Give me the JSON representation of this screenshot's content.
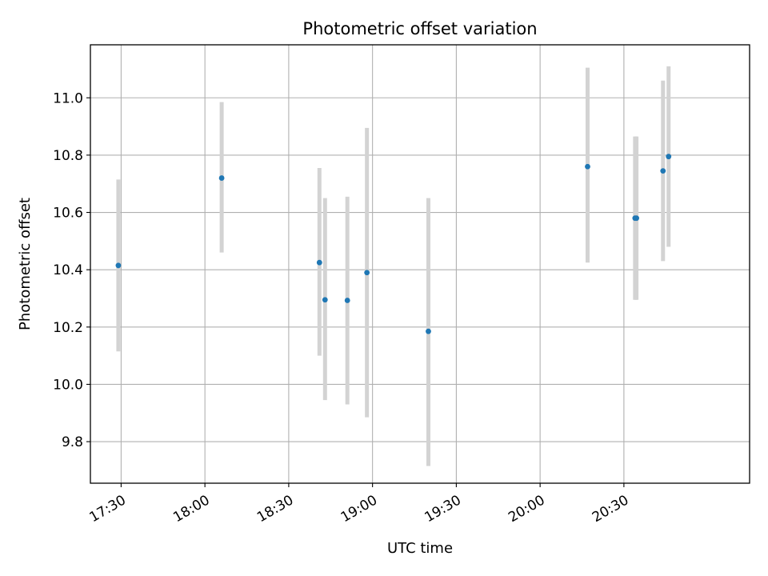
{
  "chart_data": {
    "type": "scatter",
    "title": "Photometric offset variation",
    "xlabel": "UTC time",
    "ylabel": "Photometric offset",
    "xlim": [
      "17:19",
      "21:15"
    ],
    "ylim": [
      9.655,
      11.185
    ],
    "x_ticks": [
      "17:30",
      "18:00",
      "18:30",
      "19:00",
      "19:30",
      "20:00",
      "20:30"
    ],
    "y_ticks": [
      "9.8",
      "10.0",
      "10.2",
      "10.4",
      "10.6",
      "10.8",
      "11.0"
    ],
    "grid": true,
    "marker_color": "#1f77b4",
    "errorbar_color": "#d3d3d3",
    "points": [
      {
        "time": "17:29",
        "value": 10.415,
        "low": 10.115,
        "high": 10.715
      },
      {
        "time": "18:06",
        "value": 10.72,
        "low": 10.46,
        "high": 10.985
      },
      {
        "time": "18:41",
        "value": 10.425,
        "low": 10.1,
        "high": 10.755
      },
      {
        "time": "18:43",
        "value": 10.295,
        "low": 9.945,
        "high": 10.65
      },
      {
        "time": "18:51",
        "value": 10.293,
        "low": 9.93,
        "high": 10.655
      },
      {
        "time": "18:58",
        "value": 10.39,
        "low": 9.885,
        "high": 10.895
      },
      {
        "time": "19:20",
        "value": 10.185,
        "low": 9.715,
        "high": 10.65
      },
      {
        "time": "20:17",
        "value": 10.76,
        "low": 10.425,
        "high": 11.105
      },
      {
        "time": "20:34",
        "value": 10.58,
        "low": 10.295,
        "high": 10.865
      },
      {
        "time": "20:34:30",
        "value": 10.58,
        "low": 10.295,
        "high": 10.865
      },
      {
        "time": "20:44",
        "value": 10.745,
        "low": 10.43,
        "high": 11.06
      },
      {
        "time": "20:46",
        "value": 10.795,
        "low": 10.48,
        "high": 11.11
      }
    ]
  }
}
